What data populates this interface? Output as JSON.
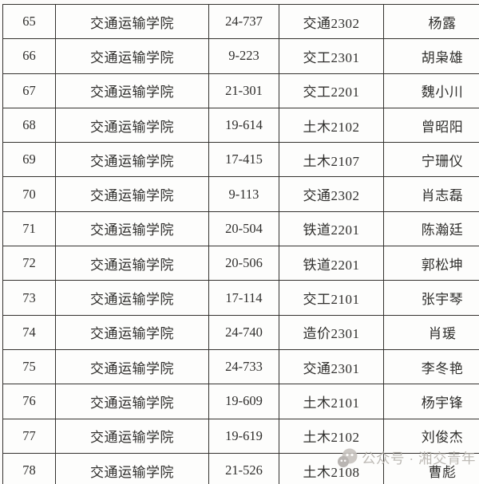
{
  "table": {
    "border_color": "#34322f",
    "text_color": "#302f2d",
    "rows": [
      {
        "no": "65",
        "college": "交通运输学院",
        "room": "24-737",
        "class": "交通2302",
        "name": "杨露"
      },
      {
        "no": "66",
        "college": "交通运输学院",
        "room": "9-223",
        "class": "交工2301",
        "name": "胡枭雄"
      },
      {
        "no": "67",
        "college": "交通运输学院",
        "room": "21-301",
        "class": "交工2201",
        "name": "魏小川"
      },
      {
        "no": "68",
        "college": "交通运输学院",
        "room": "19-614",
        "class": "土木2102",
        "name": "曾昭阳"
      },
      {
        "no": "69",
        "college": "交通运输学院",
        "room": "17-415",
        "class": "土木2107",
        "name": "宁珊仪"
      },
      {
        "no": "70",
        "college": "交通运输学院",
        "room": "9-113",
        "class": "交通2302",
        "name": "肖志磊"
      },
      {
        "no": "71",
        "college": "交通运输学院",
        "room": "20-504",
        "class": "铁道2201",
        "name": "陈瀚廷"
      },
      {
        "no": "72",
        "college": "交通运输学院",
        "room": "20-506",
        "class": "铁道2201",
        "name": "郭松坤"
      },
      {
        "no": "73",
        "college": "交通运输学院",
        "room": "17-114",
        "class": "交工2101",
        "name": "张宇琴"
      },
      {
        "no": "74",
        "college": "交通运输学院",
        "room": "24-740",
        "class": "造价2301",
        "name": "肖瑗"
      },
      {
        "no": "75",
        "college": "交通运输学院",
        "room": "24-733",
        "class": "交通2301",
        "name": "李冬艳"
      },
      {
        "no": "76",
        "college": "交通运输学院",
        "room": "19-609",
        "class": "土木2101",
        "name": "杨宇锋"
      },
      {
        "no": "77",
        "college": "交通运输学院",
        "room": "19-619",
        "class": "土木2102",
        "name": "刘俊杰"
      },
      {
        "no": "78",
        "college": "交通运输学院",
        "room": "21-526",
        "class": "土木2108",
        "name": "曹彪"
      }
    ]
  },
  "watermark": {
    "text": "公众号 · 湘交青年",
    "icon": "wechat-official-account-icon",
    "color": "#b7b3ae"
  }
}
